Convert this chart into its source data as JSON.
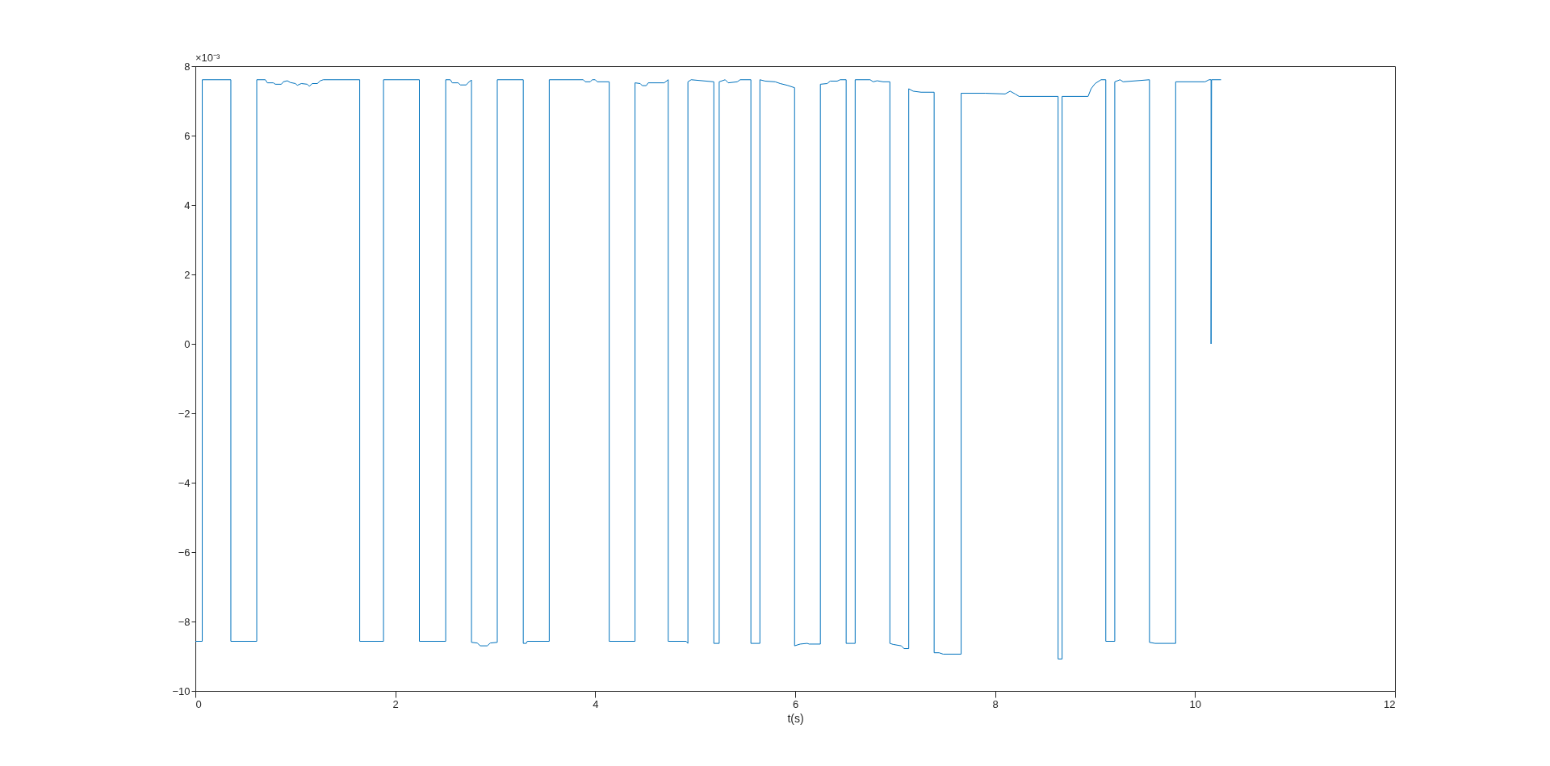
{
  "chart_data": {
    "type": "line",
    "xlabel": "t(s)",
    "annotations": [
      "×10⁻³"
    ],
    "color": "#0072bd",
    "xlim": [
      0,
      12
    ],
    "xticks": [
      0,
      2,
      4,
      6,
      8,
      10,
      12
    ],
    "ylim": [
      -10,
      8
    ],
    "yticks": [
      -10,
      -8,
      -6,
      -4,
      -2,
      0,
      2,
      4,
      6,
      8
    ],
    "x": [
      0,
      0.069,
      0.069,
      0.355,
      0.355,
      0.614,
      0.614,
      0.7,
      0.72,
      0.78,
      0.8,
      0.86,
      0.88,
      0.92,
      0.95,
      1.0,
      1.02,
      1.06,
      1.12,
      1.14,
      1.17,
      1.22,
      1.25,
      1.28,
      1.644,
      1.644,
      1.882,
      1.882,
      2.241,
      2.241,
      2.504,
      2.504,
      2.55,
      2.57,
      2.63,
      2.65,
      2.71,
      2.73,
      2.762,
      2.762,
      2.82,
      2.85,
      2.92,
      2.95,
      3.02,
      3.02,
      3.28,
      3.28,
      3.31,
      3.32,
      3.54,
      3.54,
      3.88,
      3.9,
      3.95,
      3.97,
      4.0,
      4.02,
      4.14,
      4.14,
      4.398,
      4.398,
      4.45,
      4.47,
      4.51,
      4.53,
      4.69,
      4.73,
      4.73,
      4.91,
      4.927,
      4.927,
      4.96,
      5.186,
      5.186,
      5.24,
      5.24,
      5.3,
      5.33,
      5.42,
      5.45,
      5.557,
      5.557,
      5.647,
      5.647,
      5.7,
      5.8,
      5.85,
      5.92,
      5.994,
      5.994,
      6.05,
      6.12,
      6.14,
      6.252,
      6.252,
      6.32,
      6.35,
      6.42,
      6.45,
      6.51,
      6.51,
      6.6,
      6.6,
      6.75,
      6.78,
      6.82,
      6.88,
      6.947,
      6.947,
      6.98,
      7.06,
      7.09,
      7.136,
      7.136,
      7.18,
      7.26,
      7.39,
      7.39,
      7.44,
      7.48,
      7.66,
      7.66,
      7.9,
      8.1,
      8.15,
      8.2,
      8.24,
      8.63,
      8.63,
      8.67,
      8.67,
      8.93,
      8.96,
      9.0,
      9.06,
      9.107,
      9.107,
      9.197,
      9.197,
      9.25,
      9.28,
      9.544,
      9.544,
      9.6,
      9.806,
      9.806,
      10.1,
      10.14,
      10.16,
      10.16,
      10.165,
      10.26
    ],
    "values": [
      -8.57,
      -8.57,
      7.61,
      7.61,
      -8.57,
      -8.57,
      7.61,
      7.61,
      7.52,
      7.52,
      7.48,
      7.48,
      7.55,
      7.58,
      7.53,
      7.5,
      7.45,
      7.5,
      7.48,
      7.42,
      7.5,
      7.5,
      7.58,
      7.61,
      7.61,
      -8.57,
      -8.57,
      7.61,
      7.61,
      -8.57,
      -8.57,
      7.61,
      7.61,
      7.52,
      7.52,
      7.46,
      7.46,
      7.53,
      7.6,
      -8.6,
      -8.62,
      -8.7,
      -8.7,
      -8.62,
      -8.6,
      7.61,
      7.61,
      -8.63,
      -8.63,
      -8.57,
      -8.57,
      7.61,
      7.61,
      7.55,
      7.55,
      7.61,
      7.61,
      7.55,
      7.55,
      -8.57,
      -8.57,
      7.52,
      7.5,
      7.44,
      7.44,
      7.52,
      7.52,
      7.61,
      -8.57,
      -8.57,
      -8.63,
      7.55,
      7.61,
      7.55,
      -8.63,
      -8.63,
      7.55,
      7.61,
      7.52,
      7.55,
      7.61,
      7.61,
      -8.63,
      -8.63,
      7.61,
      7.57,
      7.55,
      7.5,
      7.45,
      7.38,
      -8.7,
      -8.65,
      -8.63,
      -8.65,
      -8.65,
      7.48,
      7.5,
      7.57,
      7.57,
      7.61,
      7.61,
      -8.63,
      -8.63,
      7.61,
      7.61,
      7.55,
      7.58,
      7.55,
      7.55,
      -8.63,
      -8.66,
      -8.7,
      -8.78,
      -8.78,
      7.35,
      7.28,
      7.25,
      7.25,
      -8.9,
      -8.9,
      -8.94,
      -8.94,
      7.22,
      7.22,
      7.2,
      7.28,
      7.2,
      7.13,
      7.13,
      -9.08,
      -9.08,
      7.13,
      7.13,
      7.35,
      7.5,
      7.61,
      7.61,
      -8.57,
      -8.57,
      7.55,
      7.61,
      7.55,
      7.61,
      -8.6,
      -8.63,
      -8.63,
      7.55,
      7.55,
      7.61,
      7.61,
      0,
      7.61,
      7.61
    ]
  }
}
